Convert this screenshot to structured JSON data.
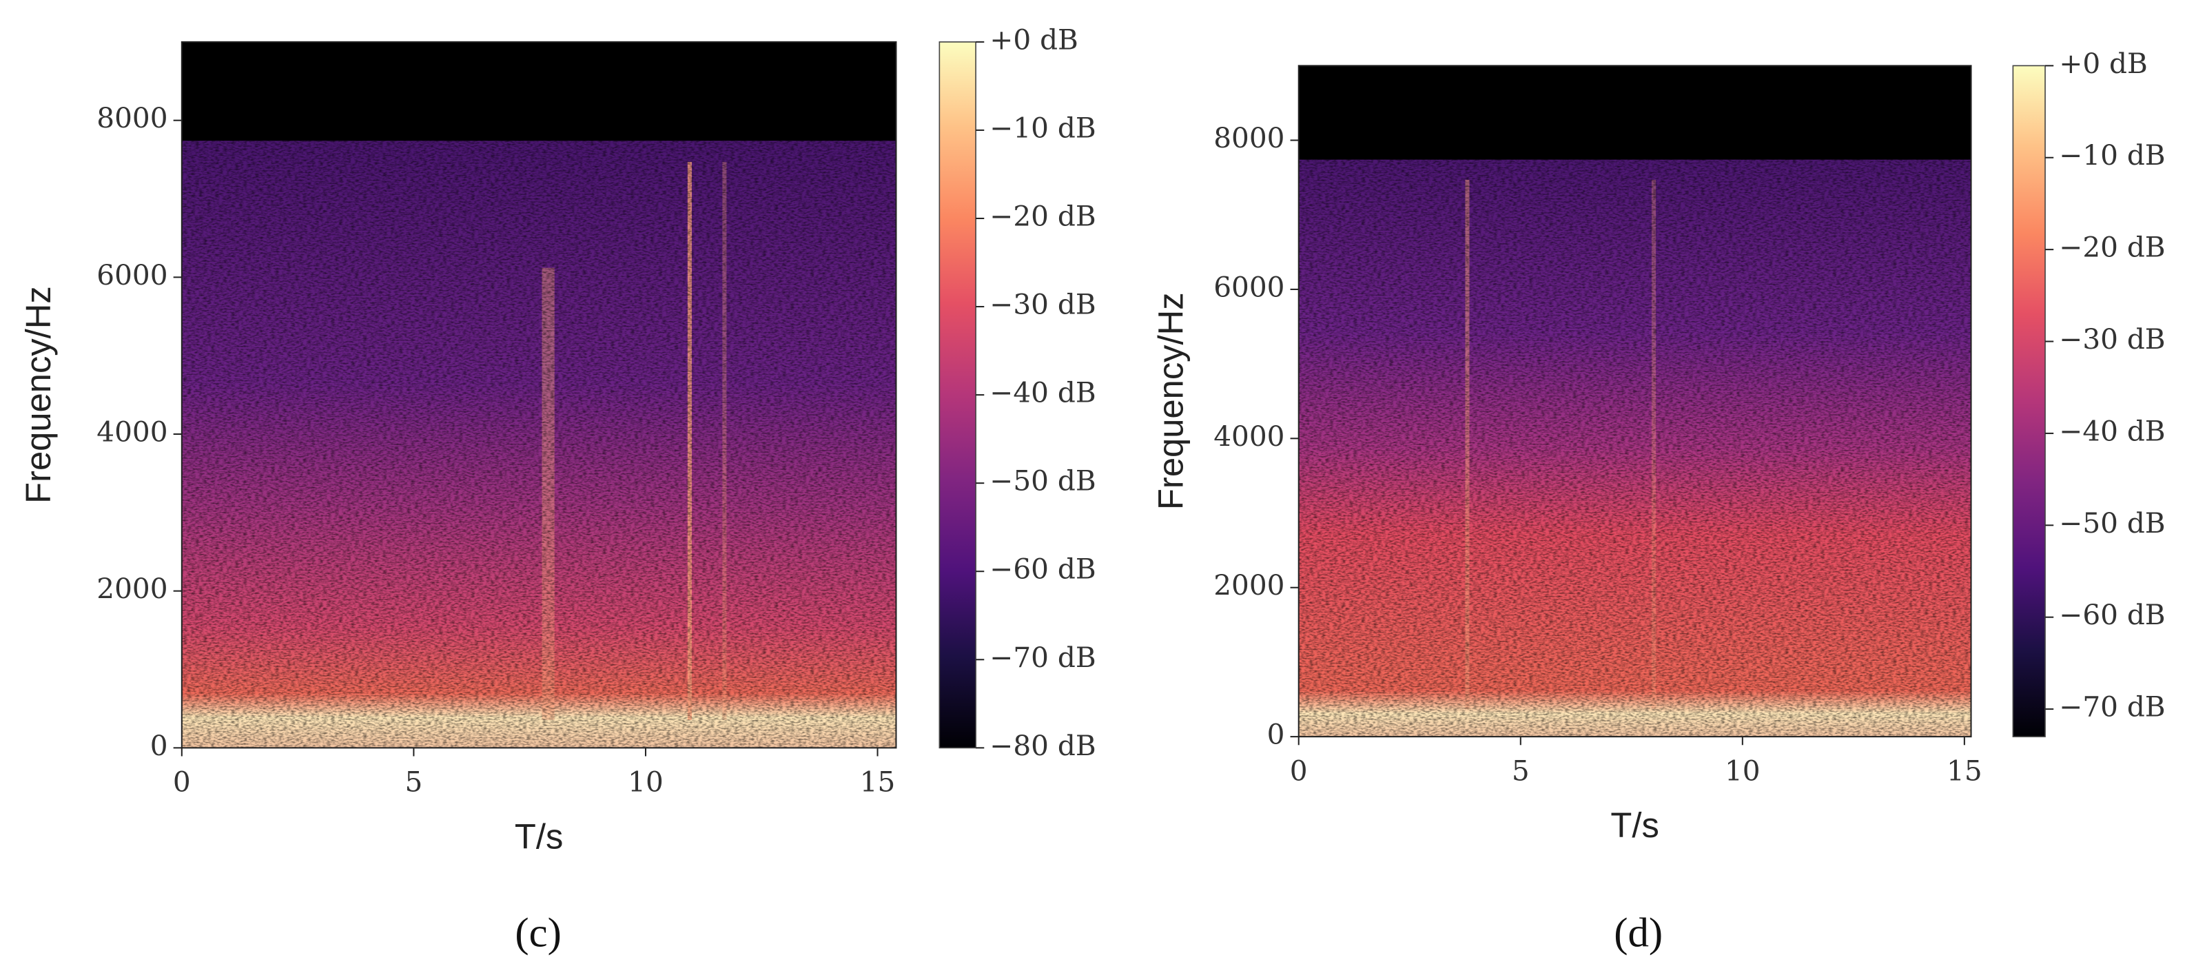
{
  "chart_data": [
    {
      "type": "spectrogram",
      "caption": "(c)",
      "xlabel": "T/s",
      "ylabel": "Frequency/Hz",
      "xlim": [
        0,
        15.4
      ],
      "xticks": [
        0,
        5,
        10,
        15
      ],
      "ylim": [
        0,
        9000
      ],
      "yticks": [
        0,
        2000,
        4000,
        6000,
        8000
      ],
      "colorbar": {
        "clim": [
          -80,
          0
        ],
        "ticks": [
          {
            "value": 0,
            "label": "+0 dB"
          },
          {
            "value": -10,
            "label": "−10 dB"
          },
          {
            "value": -20,
            "label": "−20 dB"
          },
          {
            "value": -30,
            "label": "−30 dB"
          },
          {
            "value": -40,
            "label": "−40 dB"
          },
          {
            "value": -50,
            "label": "−50 dB"
          },
          {
            "value": -60,
            "label": "−60 dB"
          },
          {
            "value": -70,
            "label": "−70 dB"
          },
          {
            "value": -80,
            "label": "−80 dB"
          }
        ]
      }
    },
    {
      "type": "spectrogram",
      "caption": "(d)",
      "xlabel": "T/s",
      "ylabel": "Frequency/Hz",
      "xlim": [
        0,
        15.15
      ],
      "xticks": [
        0,
        5,
        10,
        15
      ],
      "ylim": [
        0,
        9000
      ],
      "yticks": [
        0,
        2000,
        4000,
        6000,
        8000
      ],
      "colorbar": {
        "clim": [
          -73,
          0
        ],
        "ticks": [
          {
            "value": 0,
            "label": "+0 dB"
          },
          {
            "value": -10,
            "label": "−10 dB"
          },
          {
            "value": -20,
            "label": "−20 dB"
          },
          {
            "value": -30,
            "label": "−30 dB"
          },
          {
            "value": -40,
            "label": "−40 dB"
          },
          {
            "value": -50,
            "label": "−50 dB"
          },
          {
            "value": -60,
            "label": "−60 dB"
          },
          {
            "value": -70,
            "label": "−70 dB"
          }
        ]
      }
    }
  ]
}
